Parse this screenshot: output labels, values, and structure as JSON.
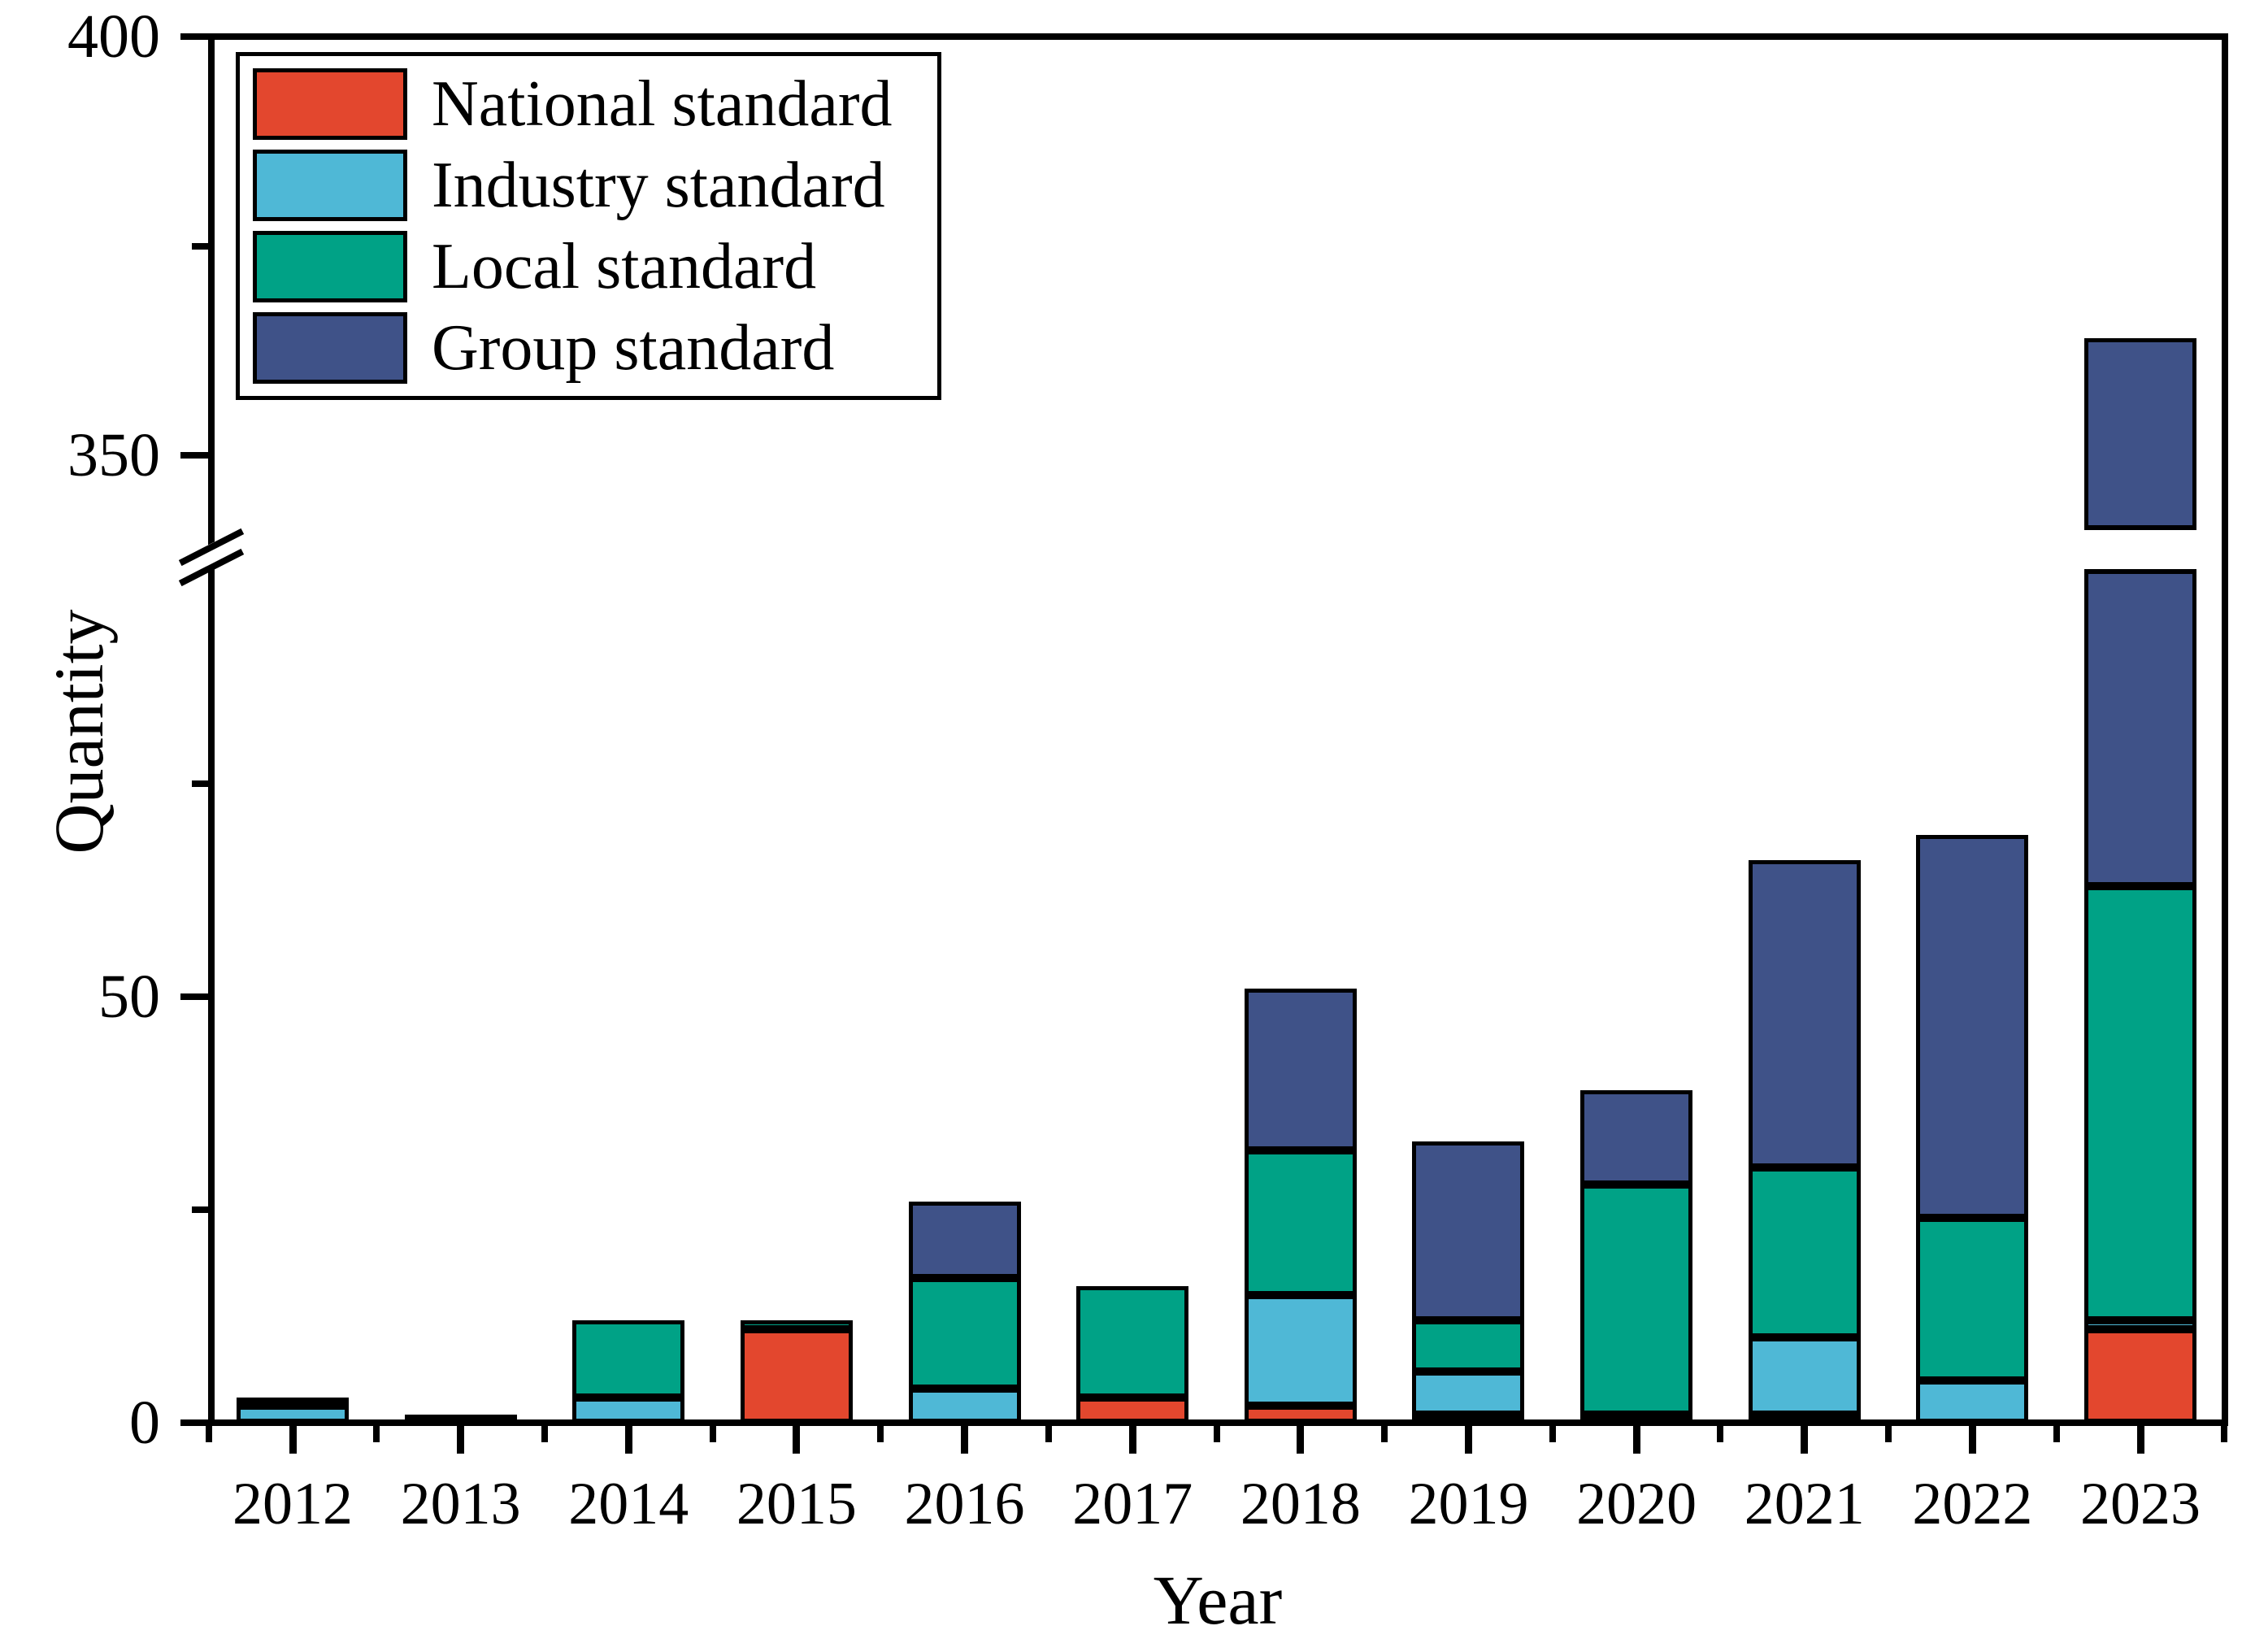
{
  "chart_data": {
    "type": "bar",
    "stacked": true,
    "title": "",
    "xlabel": "Year",
    "ylabel": "Quantity",
    "categories": [
      "2012",
      "2013",
      "2014",
      "2015",
      "2016",
      "2017",
      "2018",
      "2019",
      "2020",
      "2021",
      "2022",
      "2023"
    ],
    "series": [
      {
        "name": "National standard",
        "color": "#E3472E",
        "values": [
          0,
          0,
          0,
          11,
          0,
          3,
          2,
          1,
          0,
          1,
          0,
          11
        ]
      },
      {
        "name": "Industry standard",
        "color": "#4FB8D6",
        "values": [
          2,
          1,
          3,
          0,
          4,
          0,
          13,
          5,
          1,
          9,
          5,
          1
        ]
      },
      {
        "name": "Local standard",
        "color": "#00A286",
        "values": [
          1,
          0,
          9,
          1,
          13,
          13,
          17,
          6,
          27,
          20,
          19,
          51
        ]
      },
      {
        "name": "Group standard",
        "color": "#3F5288",
        "values": [
          0,
          0,
          0,
          0,
          9,
          0,
          19,
          21,
          11,
          36,
          45,
          301
        ]
      }
    ],
    "totals": [
      3,
      1,
      12,
      12,
      26,
      16,
      51,
      33,
      39,
      66,
      69,
      364
    ],
    "axis": {
      "y_major_ticks": [
        0,
        50,
        350,
        400
      ],
      "y_minor_ticks": [
        25,
        75,
        375
      ],
      "y_break_hidden_range": [
        100,
        339
      ],
      "ylim_low_segment": [
        0,
        100
      ],
      "ylim_high_segment": [
        339,
        400
      ],
      "grid": false,
      "legend_position": "top-left",
      "bar_border_color": "#000000",
      "background_color": "#FFFFFF"
    }
  }
}
